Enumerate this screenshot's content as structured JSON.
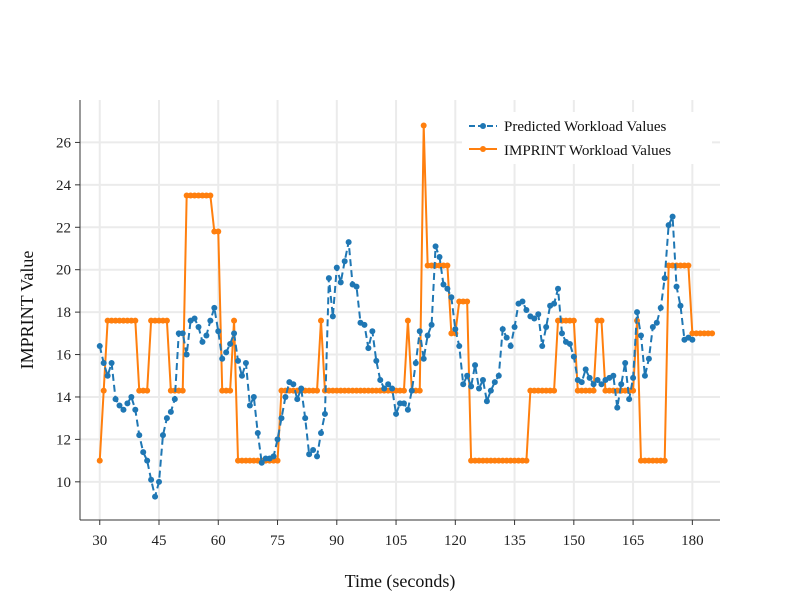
{
  "chart_data": {
    "type": "line",
    "title": "",
    "xlabel": "Time (seconds)",
    "ylabel": "IMPRINT Value",
    "xlim": [
      25,
      187
    ],
    "ylim": [
      8.2,
      28
    ],
    "xticks": [
      30,
      45,
      60,
      75,
      90,
      105,
      120,
      135,
      150,
      165,
      180
    ],
    "yticks": [
      10,
      12,
      14,
      16,
      18,
      20,
      22,
      24,
      26
    ],
    "grid": true,
    "legend_position": "top-right",
    "x_start": 30,
    "x_step": 1,
    "series": [
      {
        "name": "Predicted Workload Values",
        "color": "#1f77b4",
        "style": "dashed",
        "marker": "circle",
        "values": [
          16.4,
          15.6,
          15.0,
          15.6,
          13.9,
          13.6,
          13.4,
          13.7,
          14.0,
          13.4,
          12.2,
          11.4,
          11.0,
          10.1,
          9.3,
          10.0,
          12.2,
          13.0,
          13.3,
          13.9,
          17.0,
          17.0,
          16.0,
          17.6,
          17.7,
          17.3,
          16.6,
          16.9,
          17.6,
          18.2,
          17.1,
          15.8,
          16.1,
          16.5,
          17.0,
          15.7,
          15.0,
          15.6,
          13.6,
          14.0,
          12.3,
          10.9,
          11.1,
          11.1,
          11.2,
          12.0,
          13.0,
          14.0,
          14.7,
          14.6,
          13.9,
          14.4,
          13.0,
          11.3,
          11.5,
          11.2,
          12.3,
          13.2,
          19.6,
          17.8,
          20.1,
          19.4,
          20.4,
          21.3,
          19.3,
          19.2,
          17.5,
          17.4,
          16.3,
          17.1,
          15.7,
          14.8,
          14.4,
          14.6,
          14.4,
          13.2,
          13.7,
          13.7,
          13.4,
          14.3,
          15.6,
          17.1,
          15.8,
          16.9,
          17.4,
          21.1,
          20.6,
          19.3,
          19.1,
          18.7,
          17.2,
          16.4,
          14.6,
          15.0,
          14.5,
          15.5,
          14.4,
          14.8,
          13.8,
          14.3,
          14.7,
          15.0,
          17.2,
          16.8,
          16.4,
          17.3,
          18.4,
          18.5,
          18.1,
          17.8,
          17.7,
          17.9,
          16.4,
          17.3,
          18.3,
          18.4,
          19.1,
          17.0,
          16.6,
          16.5,
          15.9,
          14.8,
          14.7,
          15.3,
          14.9,
          14.6,
          14.8,
          14.6,
          14.8,
          14.9,
          15.0,
          13.5,
          14.6,
          15.6,
          13.9,
          14.9,
          18.0,
          16.9,
          15.0,
          15.8,
          17.3,
          17.5,
          18.2,
          19.6,
          22.1,
          22.5,
          19.2,
          18.3,
          16.7,
          16.8,
          16.7
        ]
      },
      {
        "name": "IMPRINT Workload Values",
        "color": "#ff7f0e",
        "style": "solid",
        "marker": "circle",
        "values": [
          11.0,
          14.3,
          17.6,
          17.6,
          17.6,
          17.6,
          17.6,
          17.6,
          17.6,
          17.6,
          14.3,
          14.3,
          14.3,
          17.6,
          17.6,
          17.6,
          17.6,
          17.6,
          14.3,
          14.3,
          14.3,
          14.3,
          23.5,
          23.5,
          23.5,
          23.5,
          23.5,
          23.5,
          23.5,
          21.8,
          21.8,
          14.3,
          14.3,
          14.3,
          17.6,
          11.0,
          11.0,
          11.0,
          11.0,
          11.0,
          11.0,
          11.0,
          11.0,
          11.0,
          11.0,
          11.0,
          14.3,
          14.3,
          14.3,
          14.3,
          14.3,
          14.3,
          14.3,
          14.3,
          14.3,
          14.3,
          17.6,
          14.3,
          14.3,
          14.3,
          14.3,
          14.3,
          14.3,
          14.3,
          14.3,
          14.3,
          14.3,
          14.3,
          14.3,
          14.3,
          14.3,
          14.3,
          14.3,
          14.3,
          14.3,
          14.3,
          14.3,
          14.3,
          17.6,
          14.3,
          14.3,
          14.3,
          26.8,
          20.2,
          20.2,
          20.2,
          20.2,
          20.2,
          20.2,
          17.0,
          17.0,
          18.5,
          18.5,
          18.5,
          11.0,
          11.0,
          11.0,
          11.0,
          11.0,
          11.0,
          11.0,
          11.0,
          11.0,
          11.0,
          11.0,
          11.0,
          11.0,
          11.0,
          11.0,
          14.3,
          14.3,
          14.3,
          14.3,
          14.3,
          14.3,
          14.3,
          17.6,
          17.6,
          17.6,
          17.6,
          17.6,
          14.3,
          14.3,
          14.3,
          14.3,
          14.3,
          17.6,
          17.6,
          14.3,
          14.3,
          14.3,
          14.3,
          14.3,
          14.3,
          14.3,
          14.3,
          17.6,
          11.0,
          11.0,
          11.0,
          11.0,
          11.0,
          11.0,
          11.0,
          20.2,
          20.2,
          20.2,
          20.2,
          20.2,
          20.2,
          17.0,
          17.0,
          17.0,
          17.0,
          17.0,
          17.0
        ]
      }
    ]
  }
}
